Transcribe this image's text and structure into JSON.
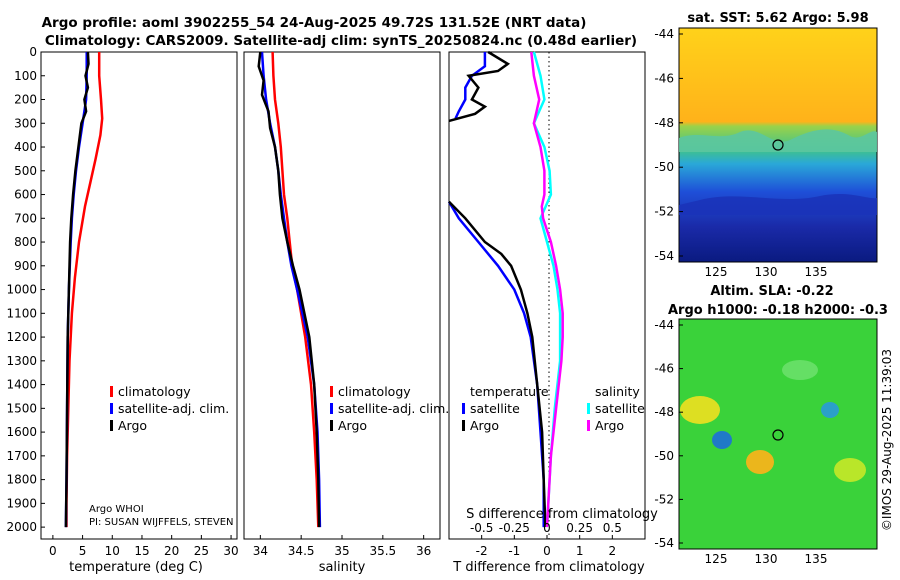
{
  "title": {
    "line1": "Argo profile: aoml 3902255_54 24-Aug-2025 49.72S 131.52E (NRT data)",
    "line2": "Climatology: CARS2009. Satellite-adj clim: synTS_20250824.nc (0.48d earlier)"
  },
  "colors": {
    "climatology": "#ff0000",
    "satellite": "#0000ff",
    "argo": "#000000",
    "sat_salinity": "#00ffff",
    "argo_salinity": "#ff00ff"
  },
  "chart_data": [
    {
      "type": "line",
      "panel": "temperature",
      "xlabel": "temperature (deg C)",
      "ylabel": "",
      "xlim": [
        -2,
        31
      ],
      "ylim": [
        2050,
        0
      ],
      "xticks": [
        0,
        5,
        10,
        15,
        20,
        25,
        30
      ],
      "xtick_labels": [
        "0",
        "5",
        "10",
        "15",
        "20",
        "25",
        "30"
      ],
      "yticks": [
        0,
        100,
        200,
        300,
        400,
        500,
        600,
        700,
        800,
        900,
        1000,
        1100,
        1200,
        1300,
        1400,
        1500,
        1600,
        1700,
        1800,
        1900,
        2000
      ],
      "ytick_labels": [
        "0",
        "100",
        "200",
        "300",
        "400",
        "500",
        "600",
        "700",
        "800",
        "900",
        "1000",
        "1100",
        "1200",
        "1300",
        "1400",
        "1500",
        "1600",
        "1700",
        "1800",
        "1900",
        "2000"
      ],
      "legend": [
        "climatology",
        "satellite-adj. clim.",
        "Argo"
      ],
      "annotation": [
        "Argo WHOI",
        "PI: SUSAN WIJFFELS, STEVEN"
      ],
      "series": [
        {
          "name": "climatology",
          "depth": [
            0,
            100,
            200,
            280,
            350,
            450,
            550,
            650,
            800,
            950,
            1100,
            1300,
            1500,
            1700,
            1900,
            2000
          ],
          "values": [
            7.8,
            7.8,
            8.1,
            8.3,
            8.0,
            7.2,
            6.3,
            5.4,
            4.4,
            3.7,
            3.2,
            2.8,
            2.6,
            2.4,
            2.3,
            2.3
          ]
        },
        {
          "name": "satellite-adj. clim.",
          "depth": [
            0,
            100,
            200,
            300,
            400,
            500,
            600,
            700,
            800,
            1000,
            1200,
            1500,
            1800,
            2000
          ],
          "values": [
            5.7,
            5.7,
            5.6,
            5.0,
            4.4,
            3.9,
            3.5,
            3.2,
            3.0,
            2.7,
            2.5,
            2.4,
            2.3,
            2.2
          ]
        },
        {
          "name": "Argo",
          "depth": [
            0,
            50,
            100,
            150,
            200,
            250,
            300,
            400,
            500,
            600,
            700,
            800,
            1000,
            1200,
            1500,
            1800,
            2000
          ],
          "values": [
            5.9,
            6.0,
            5.5,
            5.9,
            5.3,
            5.6,
            4.8,
            4.3,
            3.8,
            3.4,
            3.1,
            2.9,
            2.7,
            2.5,
            2.4,
            2.3,
            2.2
          ]
        }
      ]
    },
    {
      "type": "line",
      "panel": "salinity",
      "xlabel": "salinity",
      "xlim": [
        33.8,
        36.2
      ],
      "ylim": [
        2050,
        0
      ],
      "xticks": [
        34,
        34.5,
        35,
        35.5,
        36
      ],
      "xtick_labels": [
        "34",
        "34.5",
        "35",
        "35.5",
        "36"
      ],
      "legend": [
        "climatology",
        "satellite-adj. clim.",
        "Argo"
      ],
      "series": [
        {
          "name": "climatology",
          "depth": [
            0,
            100,
            200,
            300,
            400,
            500,
            600,
            700,
            800,
            900,
            1000,
            1200,
            1400,
            1600,
            1800,
            2000
          ],
          "values": [
            34.15,
            34.16,
            34.18,
            34.22,
            34.25,
            34.27,
            34.29,
            34.33,
            34.36,
            34.39,
            34.45,
            34.55,
            34.62,
            34.66,
            34.69,
            34.71
          ]
        },
        {
          "name": "satellite-adj. clim.",
          "depth": [
            0,
            100,
            200,
            300,
            400,
            500,
            600,
            700,
            800,
            900,
            1000,
            1200,
            1400,
            1600,
            1800,
            2000
          ],
          "values": [
            34.02,
            34.04,
            34.07,
            34.12,
            34.18,
            34.22,
            34.25,
            34.29,
            34.33,
            34.38,
            34.45,
            34.58,
            34.66,
            34.7,
            34.72,
            34.73
          ]
        },
        {
          "name": "Argo",
          "depth": [
            0,
            60,
            120,
            180,
            250,
            320,
            400,
            500,
            600,
            700,
            800,
            900,
            1000,
            1200,
            1400,
            1600,
            1800,
            2000
          ],
          "values": [
            34.0,
            33.98,
            34.04,
            34.02,
            34.1,
            34.12,
            34.18,
            34.22,
            34.24,
            34.27,
            34.33,
            34.4,
            34.48,
            34.6,
            34.66,
            34.69,
            34.71,
            34.72
          ]
        }
      ]
    },
    {
      "type": "line",
      "panel": "difference",
      "xlabel": "T difference from climatology",
      "xlabel_top": "S difference from climatology",
      "xlim": [
        -3,
        3
      ],
      "ylim": [
        2050,
        0
      ],
      "xticks": [
        -2,
        -1,
        0,
        1,
        2
      ],
      "xtick_labels": [
        "-2",
        "-1",
        "0",
        "1",
        "2"
      ],
      "s_ticks": [
        -0.5,
        -0.25,
        0,
        0.25,
        0.5
      ],
      "s_tick_labels": [
        "-0.5",
        "-0.25",
        "0",
        "0.25",
        "0.5"
      ],
      "legend_temperature": {
        "title": "temperature",
        "items": [
          "satellite",
          "Argo"
        ]
      },
      "legend_salinity": {
        "title": "salinity",
        "items": [
          "satellite",
          "Argo"
        ]
      },
      "series": [
        {
          "name": "T satellite",
          "depth": [
            0,
            60,
            100,
            150,
            200,
            250,
            280
          ],
          "values": [
            -1.9,
            -1.9,
            -2.3,
            -2.5,
            -2.5,
            -2.7,
            -2.8
          ]
        },
        {
          "name": "T Argo",
          "depth": [
            0,
            50,
            80,
            100,
            150,
            200,
            230,
            260,
            290
          ],
          "values": [
            -1.8,
            -1.2,
            -1.5,
            -2.4,
            -2.1,
            -2.3,
            -1.9,
            -2.2,
            -3.0
          ]
        },
        {
          "name": "T satellite deep",
          "depth": [
            630,
            700,
            800,
            900,
            1000,
            1100,
            1200,
            1400,
            1600,
            1800,
            2000
          ],
          "values": [
            -3.0,
            -2.7,
            -2.1,
            -1.5,
            -1.0,
            -0.7,
            -0.5,
            -0.3,
            -0.2,
            -0.1,
            -0.1
          ]
        },
        {
          "name": "T Argo deep",
          "depth": [
            630,
            700,
            800,
            850,
            900,
            1000,
            1100,
            1200,
            1400,
            1600,
            1800,
            2000
          ],
          "values": [
            -3.0,
            -2.5,
            -1.9,
            -1.4,
            -1.1,
            -0.8,
            -0.6,
            -0.45,
            -0.3,
            -0.15,
            -0.1,
            -0.05
          ]
        },
        {
          "name": "S satellite",
          "depth": [
            0,
            100,
            200,
            300,
            400,
            500,
            600,
            700,
            800,
            900,
            1000,
            1100,
            1200,
            1300,
            1500,
            1700,
            1900,
            2000
          ],
          "values": [
            -0.1,
            -0.05,
            -0.02,
            -0.1,
            -0.02,
            0.02,
            0.03,
            -0.05,
            0.0,
            0.05,
            0.08,
            0.1,
            0.1,
            0.1,
            0.06,
            0.03,
            0.01,
            0.0
          ]
        },
        {
          "name": "S Argo",
          "depth": [
            0,
            100,
            200,
            300,
            400,
            500,
            600,
            650,
            700,
            800,
            900,
            1000,
            1100,
            1200,
            1300,
            1500,
            1700,
            1900,
            2000
          ],
          "values": [
            -0.12,
            -0.1,
            -0.06,
            -0.1,
            -0.05,
            -0.02,
            -0.02,
            -0.04,
            -0.03,
            0.03,
            0.07,
            0.1,
            0.12,
            0.12,
            0.11,
            0.07,
            0.03,
            0.01,
            0.0
          ]
        }
      ]
    },
    {
      "type": "heatmap",
      "panel": "sst_map",
      "title": "sat. SST: 5.62 Argo: 5.98",
      "xticks": [
        "125",
        "130",
        "135"
      ],
      "yticks": [
        "-44",
        "-46",
        "-48",
        "-50",
        "-52",
        "-54"
      ],
      "marker": {
        "lon": 131.5,
        "lat": -49.7
      }
    },
    {
      "type": "heatmap",
      "panel": "sla_map",
      "title_line1": "Altim. SLA: -0.22",
      "title_line2": "Argo h1000: -0.18 h2000: -0.3",
      "xticks": [
        "125",
        "130",
        "135"
      ],
      "yticks": [
        "-44",
        "-46",
        "-48",
        "-50",
        "-52",
        "-54"
      ],
      "marker": {
        "lon": 131.5,
        "lat": -49.7
      }
    }
  ],
  "footer": "©IMOS 29-Aug-2025 11:39:03"
}
